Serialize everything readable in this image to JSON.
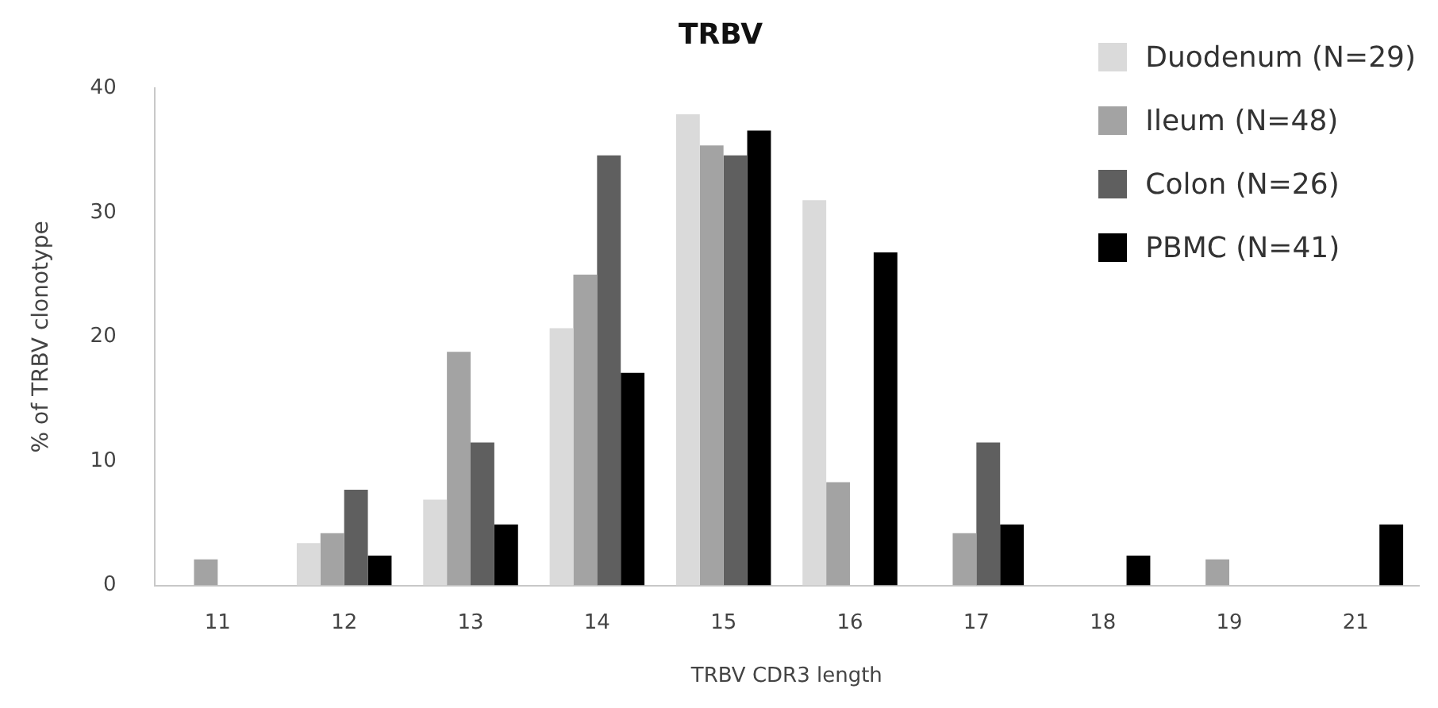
{
  "chart_data": {
    "type": "bar",
    "title": "TRBV",
    "xlabel": "TRBV CDR3 length",
    "ylabel": "% of TRBV clonotype",
    "categories": [
      "11",
      "12",
      "13",
      "14",
      "15",
      "16",
      "17",
      "18",
      "19",
      "21"
    ],
    "series": [
      {
        "name": "Duodenum (N=29)",
        "color": "#dadada",
        "values": [
          0,
          3.4,
          6.9,
          20.7,
          37.9,
          31.0,
          0,
          0,
          0,
          0
        ]
      },
      {
        "name": "Ileum (N=48)",
        "color": "#a3a3a3",
        "values": [
          2.1,
          4.2,
          18.8,
          25.0,
          35.4,
          8.3,
          4.2,
          0,
          2.1,
          0
        ]
      },
      {
        "name": "Colon (N=26)",
        "color": "#5f5f5f",
        "values": [
          0,
          7.7,
          11.5,
          34.6,
          34.6,
          0,
          11.5,
          0,
          0,
          0
        ]
      },
      {
        "name": "PBMC (N=41)",
        "color": "#000000",
        "values": [
          0,
          2.4,
          4.9,
          17.1,
          36.6,
          26.8,
          4.9,
          2.4,
          0,
          4.9
        ]
      }
    ],
    "ylim": [
      0,
      40
    ],
    "yticks": [
      0,
      10,
      20,
      30,
      40
    ],
    "grid": false,
    "legend": "top right"
  }
}
